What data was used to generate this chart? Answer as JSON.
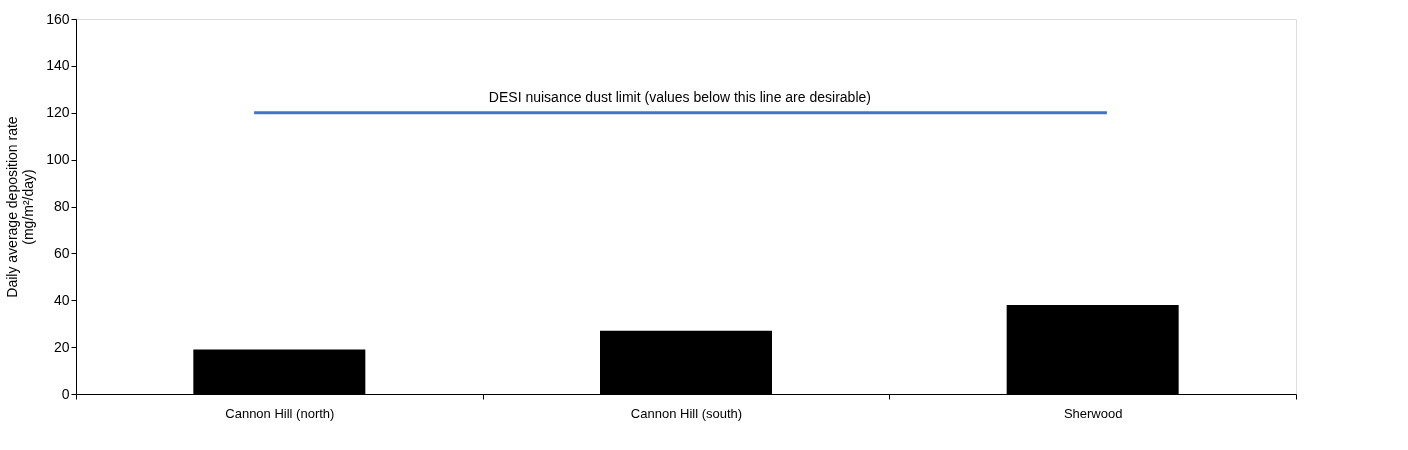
{
  "chart_data": {
    "type": "bar",
    "ylabel": "Daily average deposition rate\n(mg/m²/day)",
    "categories": [
      "Cannon Hill (north)",
      "Cannon Hill (south)",
      "Sherwood"
    ],
    "values": [
      19,
      27,
      38
    ],
    "color": "#000000",
    "ylim": [
      0,
      160
    ],
    "yticks": [
      0,
      20,
      40,
      60,
      80,
      100,
      120,
      140,
      160
    ],
    "grid": false,
    "ref_lines": [
      {
        "axis": "y",
        "value": 120,
        "label": "DESI nuisance dust limit (values below this line are desirable)",
        "color": "#4472c4"
      }
    ]
  }
}
